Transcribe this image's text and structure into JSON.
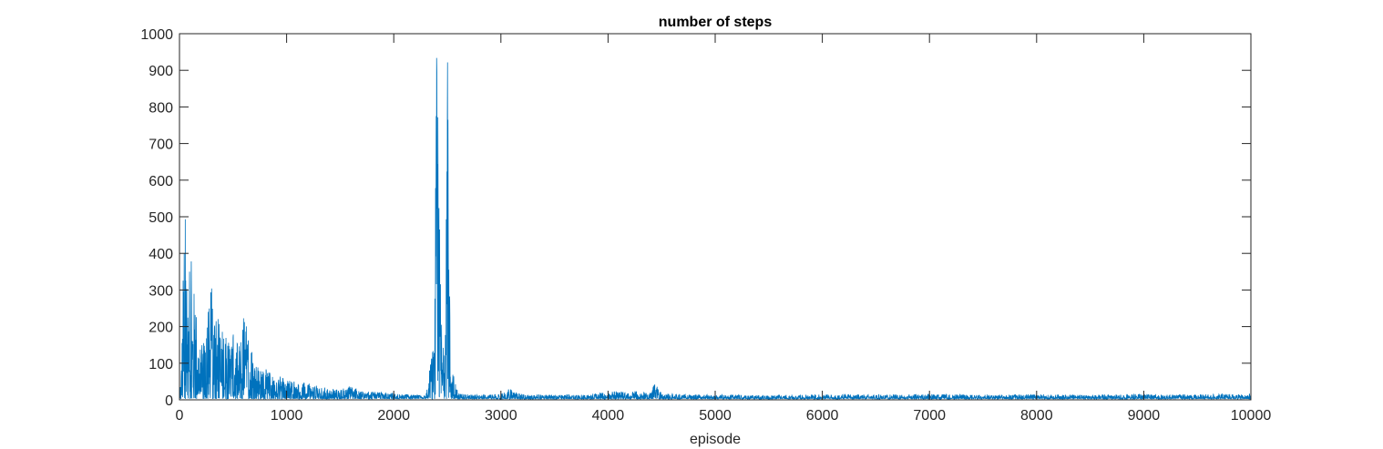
{
  "chart_data": {
    "type": "line",
    "title": "number of steps",
    "xlabel": "episode",
    "ylabel": "",
    "xlim": [
      0,
      10000
    ],
    "ylim": [
      0,
      1000
    ],
    "x_ticks": [
      0,
      1000,
      2000,
      3000,
      4000,
      5000,
      6000,
      7000,
      8000,
      9000,
      10000
    ],
    "y_ticks": [
      0,
      100,
      200,
      300,
      400,
      500,
      600,
      700,
      800,
      900,
      1000
    ],
    "grid": false,
    "series": [
      {
        "color": "#0072BD",
        "x": [
          0,
          20,
          50,
          80,
          100,
          130,
          160,
          200,
          250,
          300,
          350,
          400,
          450,
          500,
          550,
          600,
          650,
          700,
          750,
          800,
          900,
          1000,
          1100,
          1200,
          1300,
          1400,
          1500,
          1600,
          1700,
          1800,
          1900,
          2000,
          2100,
          2200,
          2300,
          2380,
          2400,
          2420,
          2440,
          2460,
          2480,
          2500,
          2520,
          2540,
          2560,
          2600,
          2700,
          2800,
          2900,
          3000,
          3080,
          3200,
          3400,
          3600,
          3800,
          4000,
          4200,
          4400,
          4430,
          4500,
          4700,
          5000,
          5500,
          6000,
          6500,
          7000,
          7500,
          8000,
          8500,
          9000,
          9500,
          10000
        ],
        "y": [
          5,
          120,
          600,
          250,
          410,
          320,
          260,
          140,
          200,
          315,
          240,
          200,
          160,
          180,
          150,
          235,
          170,
          110,
          90,
          85,
          70,
          60,
          50,
          45,
          38,
          32,
          28,
          40,
          25,
          22,
          20,
          18,
          15,
          14,
          12,
          180,
          1000,
          620,
          300,
          150,
          130,
          1000,
          340,
          120,
          65,
          20,
          15,
          14,
          15,
          16,
          30,
          15,
          14,
          15,
          14,
          22,
          25,
          20,
          50,
          18,
          15,
          14,
          13,
          15,
          14,
          16,
          14,
          15,
          14,
          16,
          15,
          16
        ]
      }
    ]
  }
}
